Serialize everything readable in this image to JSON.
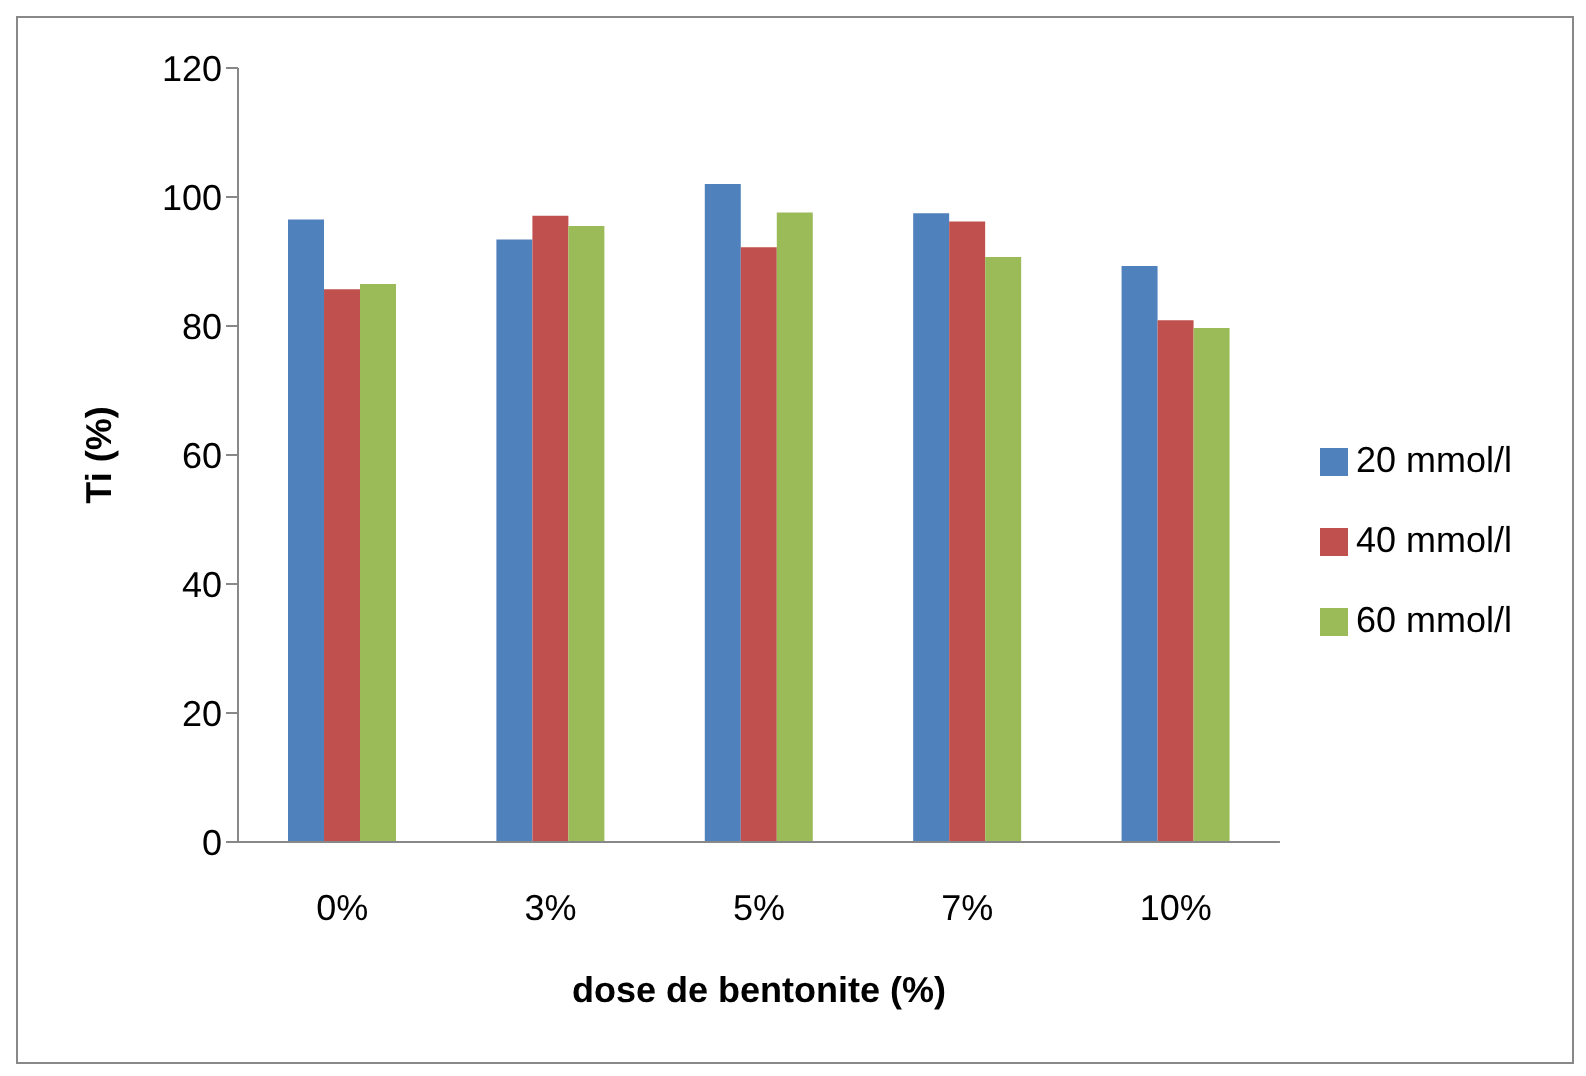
{
  "chart_data": {
    "type": "bar",
    "xlabel": "dose de bentonite (%)",
    "ylabel": "Ti (%)",
    "categories": [
      "0%",
      "3%",
      "5%",
      "7%",
      "10%"
    ],
    "series": [
      {
        "name": "20 mmol/l",
        "color": "#4f81bd",
        "values": [
          96.5,
          93.4,
          102,
          97.5,
          89.3
        ]
      },
      {
        "name": "40 mmol/l",
        "color": "#c0504d",
        "values": [
          85.7,
          97.1,
          92.2,
          96.2,
          80.9
        ]
      },
      {
        "name": "60 mmol/l",
        "color": "#9bbb59",
        "values": [
          86.5,
          95.5,
          97.6,
          90.7,
          79.7
        ]
      }
    ],
    "ylim": [
      0,
      120
    ],
    "yticks": [
      0,
      20,
      40,
      60,
      80,
      100,
      120
    ],
    "grid": false,
    "legend": "right"
  }
}
